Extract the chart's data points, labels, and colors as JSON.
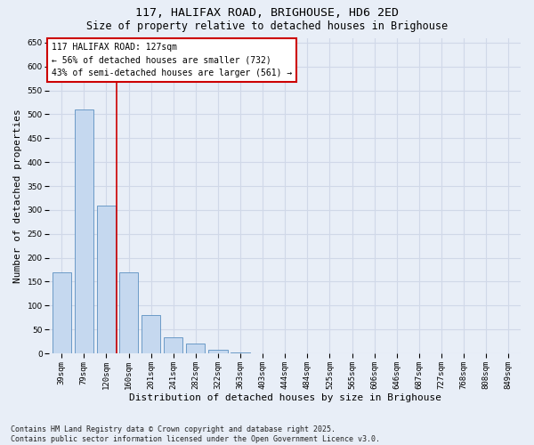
{
  "title1": "117, HALIFAX ROAD, BRIGHOUSE, HD6 2ED",
  "title2": "Size of property relative to detached houses in Brighouse",
  "xlabel": "Distribution of detached houses by size in Brighouse",
  "ylabel": "Number of detached properties",
  "categories": [
    "39sqm",
    "79sqm",
    "120sqm",
    "160sqm",
    "201sqm",
    "241sqm",
    "282sqm",
    "322sqm",
    "363sqm",
    "403sqm",
    "444sqm",
    "484sqm",
    "525sqm",
    "565sqm",
    "606sqm",
    "646sqm",
    "687sqm",
    "727sqm",
    "768sqm",
    "808sqm",
    "849sqm"
  ],
  "values": [
    170,
    510,
    310,
    170,
    80,
    33,
    20,
    8,
    2,
    1,
    1,
    0,
    0,
    0,
    0,
    0,
    0,
    0,
    0,
    0,
    0
  ],
  "bar_color": "#c5d8ef",
  "bar_edge_color": "#5a8fc0",
  "vline_x": 2.48,
  "vline_color": "#cc0000",
  "annotation_text": "117 HALIFAX ROAD: 127sqm\n← 56% of detached houses are smaller (732)\n43% of semi-detached houses are larger (561) →",
  "annotation_box_color": "#ffffff",
  "annotation_box_edge": "#cc0000",
  "ylim": [
    0,
    660
  ],
  "yticks": [
    0,
    50,
    100,
    150,
    200,
    250,
    300,
    350,
    400,
    450,
    500,
    550,
    600,
    650
  ],
  "footer": "Contains HM Land Registry data © Crown copyright and database right 2025.\nContains public sector information licensed under the Open Government Licence v3.0.",
  "bg_color": "#e8eef7",
  "plot_bg_color": "#e8eef7",
  "grid_color": "#d0d8e8",
  "title_fontsize": 9.5,
  "subtitle_fontsize": 8.5,
  "tick_fontsize": 6.5,
  "label_fontsize": 8,
  "footer_fontsize": 6,
  "annot_fontsize": 7
}
